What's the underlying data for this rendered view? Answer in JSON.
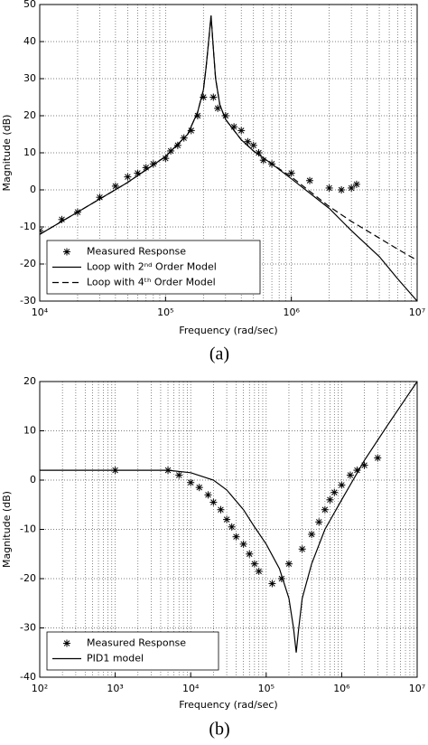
{
  "chart_data": [
    {
      "type": "line",
      "xscale": "log",
      "xlabel": "Frequency (rad/sec)",
      "ylabel": "Magnitude (dB)",
      "caption": "(a)",
      "xlim": [
        10000,
        10000000
      ],
      "ylim": [
        -30,
        50
      ],
      "xticks": [
        {
          "value": 10000,
          "label": "10⁴"
        },
        {
          "value": 100000,
          "label": "10⁵"
        },
        {
          "value": 1000000,
          "label": "10⁶"
        },
        {
          "value": 10000000,
          "label": "10⁷"
        }
      ],
      "yticks": [
        -30,
        -20,
        -10,
        0,
        10,
        20,
        30,
        40,
        50
      ],
      "grid": true,
      "minor_grid": true,
      "legend": "lower left",
      "series": [
        {
          "name": "Measured Response",
          "color": "#000000",
          "style": "markers",
          "x": [
            10000,
            15000,
            20000,
            30000,
            40000,
            50000,
            60000,
            70000,
            80000,
            100000,
            110000,
            125000,
            140000,
            160000,
            180000,
            200000,
            240000,
            260000,
            300000,
            350000,
            400000,
            450000,
            500000,
            550000,
            600000,
            700000,
            1000000,
            1400000,
            2000000,
            2500000,
            3000000,
            3300000
          ],
          "values": [
            -11,
            -8,
            -6,
            -2,
            1,
            3.5,
            4.5,
            6,
            7,
            8.5,
            10.5,
            12,
            14,
            16,
            20,
            25,
            25,
            22,
            20,
            17,
            16,
            13,
            12,
            10,
            8,
            7,
            4.5,
            2.5,
            0.5,
            0,
            0.5,
            1.5
          ]
        },
        {
          "name": "Loop with 2ⁿᵈ Order Model",
          "color": "#000000",
          "style": "solid",
          "x": [
            10000,
            20000,
            50000,
            100000,
            150000,
            180000,
            200000,
            210000,
            220000,
            230000,
            240000,
            250000,
            270000,
            300000,
            400000,
            500000,
            700000,
            1000000,
            2000000,
            3000000,
            5000000,
            7000000,
            10000000
          ],
          "values": [
            -12,
            -6,
            2,
            9,
            15,
            21,
            27,
            33,
            40,
            47,
            38,
            30,
            23,
            19,
            13.5,
            10.5,
            7,
            3,
            -5,
            -11,
            -18,
            -24,
            -30
          ]
        },
        {
          "name": "Loop with 4ᵗʰ Order Model",
          "color": "#000000",
          "style": "dashed",
          "x": [
            10000,
            20000,
            50000,
            100000,
            150000,
            180000,
            200000,
            210000,
            220000,
            230000,
            240000,
            250000,
            270000,
            300000,
            400000,
            500000,
            700000,
            1000000,
            2000000,
            3000000,
            5000000,
            7000000,
            10000000
          ],
          "values": [
            -12,
            -6,
            2,
            9,
            15,
            21,
            27,
            33,
            40,
            47,
            38,
            30,
            23,
            19,
            13.5,
            10.5,
            7,
            3.5,
            -4.5,
            -8.5,
            -13,
            -16,
            -19
          ]
        }
      ]
    },
    {
      "type": "line",
      "xscale": "log",
      "xlabel": "Frequency (rad/sec)",
      "ylabel": "Magnitude (dB)",
      "caption": "(b)",
      "xlim": [
        100,
        10000000
      ],
      "ylim": [
        -40,
        20
      ],
      "xticks": [
        {
          "value": 100,
          "label": "10²"
        },
        {
          "value": 1000,
          "label": "10³"
        },
        {
          "value": 10000,
          "label": "10⁴"
        },
        {
          "value": 100000,
          "label": "10⁵"
        },
        {
          "value": 1000000,
          "label": "10⁶"
        },
        {
          "value": 10000000,
          "label": "10⁷"
        }
      ],
      "yticks": [
        -40,
        -30,
        -20,
        -10,
        0,
        10,
        20
      ],
      "grid": true,
      "minor_grid": true,
      "legend": "lower left",
      "series": [
        {
          "name": "Measured Response",
          "color": "#000000",
          "style": "markers",
          "x": [
            1000,
            5000,
            7000,
            10000,
            13000,
            17000,
            20000,
            25000,
            30000,
            35000,
            40000,
            50000,
            60000,
            70000,
            80000,
            120000,
            160000,
            200000,
            300000,
            400000,
            500000,
            600000,
            700000,
            800000,
            1000000,
            1300000,
            1600000,
            2000000,
            3000000
          ],
          "values": [
            2,
            2,
            1,
            -0.5,
            -1.5,
            -3,
            -4.5,
            -6,
            -8,
            -9.5,
            -11.5,
            -13,
            -15,
            -17,
            -18.5,
            -21,
            -20,
            -17,
            -14,
            -11,
            -8.5,
            -6,
            -4,
            -2.5,
            -1,
            1,
            2,
            3,
            4.5
          ]
        },
        {
          "name": "PID1 model",
          "color": "#000000",
          "style": "solid",
          "x": [
            100,
            1000,
            5000,
            10000,
            20000,
            30000,
            50000,
            70000,
            100000,
            150000,
            200000,
            230000,
            250000,
            270000,
            300000,
            400000,
            600000,
            1000000,
            2000000,
            4000000,
            7000000,
            10000000
          ],
          "values": [
            2,
            2,
            2,
            1.5,
            0,
            -2,
            -6,
            -9.5,
            -13,
            -18,
            -24,
            -30,
            -35,
            -30,
            -24,
            -17,
            -10,
            -4,
            4,
            11,
            16.5,
            20
          ]
        }
      ]
    }
  ]
}
